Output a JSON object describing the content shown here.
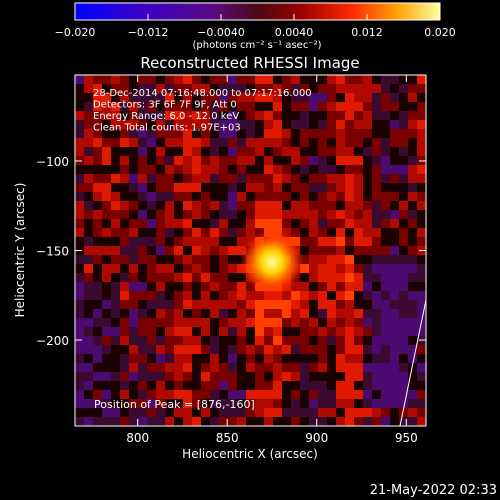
{
  "chart_data": {
    "type": "heatmap",
    "title": "Reconstructed RHESSI Image",
    "xlabel": "Heliocentric X (arcsec)",
    "ylabel": "Heliocentric Y (arcsec)",
    "xlim": [
      765,
      961
    ],
    "ylim": [
      -248,
      -52
    ],
    "x_ticks": [
      800,
      850,
      900,
      950
    ],
    "y_ticks": [
      -100,
      -150,
      -200
    ],
    "x_tick_labels": [
      "800",
      "850",
      "900",
      "950"
    ],
    "y_tick_labels": [
      "−100",
      "−150",
      "−200"
    ],
    "colorbar": {
      "range": [
        -0.02,
        0.02
      ],
      "ticks": [
        -0.02,
        -0.012,
        -0.004,
        0.004,
        0.012,
        0.02
      ],
      "tick_labels": [
        "−0.020",
        "−0.012",
        "−0.0040",
        "0.0040",
        "0.012",
        "0.020"
      ],
      "unit": "(photons cm⁻² s⁻¹ asec⁻²)"
    },
    "annotations": [
      "28-Dec-2014 07:16:48.000 to 07:17:16.000",
      "Detectors: 3F 6F 7F 9F, Att 0",
      "Energy Range: 6.0 - 12.0 keV",
      "Clean     Total counts: 1.97E+03"
    ],
    "peak_label": "Position of Peak = [876,-160]",
    "peak": {
      "x": 876,
      "y": -160
    },
    "grid": false
  },
  "footer": {
    "timestamp": "21-May-2022 02:33"
  },
  "colors": {
    "background": "#000000",
    "axes": "#ffffff"
  }
}
